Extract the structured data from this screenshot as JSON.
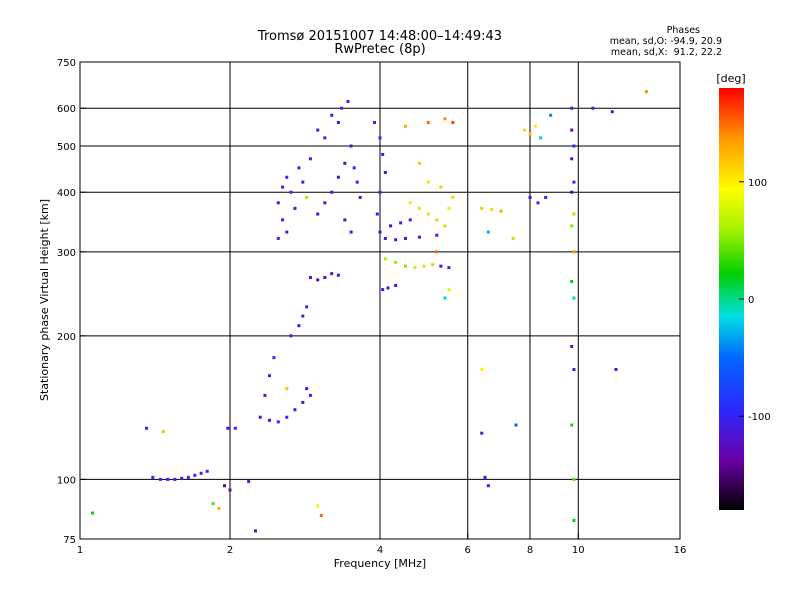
{
  "chart_data": {
    "type": "scatter",
    "title": "Tromsø 20151007 14:48:00–14:49:43",
    "subtitle": "RwPretec (8p)",
    "xlabel": "Frequency [MHz]",
    "ylabel": "Stationary phase Virtual Height [km]",
    "x_scale": "log",
    "y_scale": "log",
    "xlim": [
      1,
      16
    ],
    "ylim": [
      75,
      750
    ],
    "x_ticks": [
      1,
      2,
      4,
      6,
      8,
      10,
      16
    ],
    "y_ticks": [
      75,
      100,
      200,
      300,
      400,
      500,
      600,
      750
    ],
    "grid": true,
    "stats": {
      "heading": "Phases",
      "line_o": "mean, sd,O: -94.9, 20.9",
      "line_x": "mean, sd,X:  91.2, 22.2"
    },
    "colorbar": {
      "label": "[deg]",
      "range": [
        -180,
        180
      ],
      "ticks": [
        -100,
        0,
        100
      ],
      "colormap": "rainbow"
    },
    "series": [
      {
        "points": [
          {
            "x": 1.4,
            "y": 101,
            "c": -100
          },
          {
            "x": 1.45,
            "y": 100,
            "c": -105
          },
          {
            "x": 1.5,
            "y": 100,
            "c": -110
          },
          {
            "x": 1.55,
            "y": 100,
            "c": -112
          },
          {
            "x": 1.6,
            "y": 100.5,
            "c": -108
          },
          {
            "x": 1.65,
            "y": 101,
            "c": -105
          },
          {
            "x": 1.7,
            "y": 102,
            "c": -102
          },
          {
            "x": 1.75,
            "y": 103,
            "c": -100
          },
          {
            "x": 1.8,
            "y": 104,
            "c": -98
          },
          {
            "x": 1.36,
            "y": 128,
            "c": -95
          },
          {
            "x": 1.47,
            "y": 126,
            "c": 60
          },
          {
            "x": 1.98,
            "y": 128,
            "c": -105
          },
          {
            "x": 2.05,
            "y": 128,
            "c": -95
          },
          {
            "x": 1.95,
            "y": 97,
            "c": -140
          },
          {
            "x": 2.0,
            "y": 95,
            "c": -120
          },
          {
            "x": 2.18,
            "y": 99,
            "c": -90
          },
          {
            "x": 1.85,
            "y": 89,
            "c": 40
          },
          {
            "x": 2.3,
            "y": 135,
            "c": -110
          },
          {
            "x": 2.4,
            "y": 133,
            "c": -105
          },
          {
            "x": 2.5,
            "y": 132,
            "c": -100
          },
          {
            "x": 2.6,
            "y": 135,
            "c": -95
          },
          {
            "x": 2.7,
            "y": 140,
            "c": -100
          },
          {
            "x": 2.8,
            "y": 145,
            "c": -105
          },
          {
            "x": 2.35,
            "y": 150,
            "c": -110
          },
          {
            "x": 2.4,
            "y": 165,
            "c": -100
          },
          {
            "x": 2.45,
            "y": 180,
            "c": -95
          },
          {
            "x": 2.6,
            "y": 155,
            "c": 120
          },
          {
            "x": 2.85,
            "y": 155,
            "c": -110
          },
          {
            "x": 2.9,
            "y": 150,
            "c": -100
          },
          {
            "x": 2.65,
            "y": 200,
            "c": -105
          },
          {
            "x": 2.75,
            "y": 210,
            "c": -110
          },
          {
            "x": 2.8,
            "y": 220,
            "c": -100
          },
          {
            "x": 2.85,
            "y": 230,
            "c": -95
          },
          {
            "x": 2.5,
            "y": 380,
            "c": -110
          },
          {
            "x": 2.55,
            "y": 410,
            "c": -105
          },
          {
            "x": 2.6,
            "y": 430,
            "c": -100
          },
          {
            "x": 2.65,
            "y": 400,
            "c": -95
          },
          {
            "x": 2.7,
            "y": 370,
            "c": -110
          },
          {
            "x": 2.75,
            "y": 450,
            "c": -105
          },
          {
            "x": 2.8,
            "y": 420,
            "c": -100
          },
          {
            "x": 2.85,
            "y": 390,
            "c": 60
          },
          {
            "x": 2.9,
            "y": 470,
            "c": -100
          },
          {
            "x": 2.55,
            "y": 350,
            "c": -105
          },
          {
            "x": 2.6,
            "y": 330,
            "c": -100
          },
          {
            "x": 2.5,
            "y": 320,
            "c": -95
          },
          {
            "x": 2.9,
            "y": 265,
            "c": -125
          },
          {
            "x": 3.0,
            "y": 262,
            "c": -130
          },
          {
            "x": 3.1,
            "y": 265,
            "c": -125
          },
          {
            "x": 3.2,
            "y": 270,
            "c": -120
          },
          {
            "x": 3.3,
            "y": 268,
            "c": -115
          },
          {
            "x": 3.0,
            "y": 360,
            "c": -120
          },
          {
            "x": 3.1,
            "y": 380,
            "c": -110
          },
          {
            "x": 3.2,
            "y": 400,
            "c": -115
          },
          {
            "x": 3.3,
            "y": 430,
            "c": -120
          },
          {
            "x": 3.4,
            "y": 460,
            "c": -125
          },
          {
            "x": 3.5,
            "y": 500,
            "c": -110
          },
          {
            "x": 3.55,
            "y": 450,
            "c": -100
          },
          {
            "x": 3.6,
            "y": 420,
            "c": -105
          },
          {
            "x": 3.65,
            "y": 390,
            "c": -110
          },
          {
            "x": 3.3,
            "y": 560,
            "c": -110
          },
          {
            "x": 3.35,
            "y": 600,
            "c": -100
          },
          {
            "x": 3.45,
            "y": 620,
            "c": -105
          },
          {
            "x": 3.1,
            "y": 520,
            "c": -95
          },
          {
            "x": 3.2,
            "y": 580,
            "c": -100
          },
          {
            "x": 3.0,
            "y": 540,
            "c": -110
          },
          {
            "x": 3.4,
            "y": 350,
            "c": -115
          },
          {
            "x": 3.5,
            "y": 330,
            "c": -100
          },
          {
            "x": 3.9,
            "y": 560,
            "c": -100
          },
          {
            "x": 4.0,
            "y": 520,
            "c": -95
          },
          {
            "x": 4.05,
            "y": 480,
            "c": -105
          },
          {
            "x": 4.1,
            "y": 440,
            "c": -110
          },
          {
            "x": 4.0,
            "y": 400,
            "c": -100
          },
          {
            "x": 3.95,
            "y": 360,
            "c": -105
          },
          {
            "x": 4.0,
            "y": 330,
            "c": -110
          },
          {
            "x": 4.1,
            "y": 320,
            "c": -115
          },
          {
            "x": 4.3,
            "y": 318,
            "c": -110
          },
          {
            "x": 4.5,
            "y": 320,
            "c": -105
          },
          {
            "x": 4.8,
            "y": 322,
            "c": -100
          },
          {
            "x": 5.2,
            "y": 325,
            "c": -100
          },
          {
            "x": 4.2,
            "y": 340,
            "c": -120
          },
          {
            "x": 4.4,
            "y": 345,
            "c": -110
          },
          {
            "x": 4.6,
            "y": 350,
            "c": -105
          },
          {
            "x": 4.05,
            "y": 250,
            "c": -110
          },
          {
            "x": 4.15,
            "y": 252,
            "c": -120
          },
          {
            "x": 4.3,
            "y": 255,
            "c": -115
          },
          {
            "x": 4.1,
            "y": 290,
            "c": 60
          },
          {
            "x": 4.3,
            "y": 285,
            "c": 55
          },
          {
            "x": 4.5,
            "y": 280,
            "c": 50
          },
          {
            "x": 4.7,
            "y": 278,
            "c": 70
          },
          {
            "x": 4.9,
            "y": 280,
            "c": 65
          },
          {
            "x": 5.1,
            "y": 282,
            "c": 60
          },
          {
            "x": 5.3,
            "y": 280,
            "c": -110
          },
          {
            "x": 5.5,
            "y": 278,
            "c": -105
          },
          {
            "x": 4.6,
            "y": 380,
            "c": 80
          },
          {
            "x": 4.8,
            "y": 370,
            "c": 75
          },
          {
            "x": 5.0,
            "y": 360,
            "c": 70
          },
          {
            "x": 5.2,
            "y": 350,
            "c": 65
          },
          {
            "x": 5.4,
            "y": 340,
            "c": 60
          },
          {
            "x": 5.5,
            "y": 370,
            "c": 80
          },
          {
            "x": 5.6,
            "y": 390,
            "c": 70
          },
          {
            "x": 5.3,
            "y": 410,
            "c": 60
          },
          {
            "x": 5.0,
            "y": 420,
            "c": 75
          },
          {
            "x": 5.2,
            "y": 300,
            "c": 150
          },
          {
            "x": 5.5,
            "y": 250,
            "c": 80
          },
          {
            "x": 5.4,
            "y": 240,
            "c": -20
          },
          {
            "x": 4.5,
            "y": 550,
            "c": 130
          },
          {
            "x": 5.0,
            "y": 560,
            "c": 150
          },
          {
            "x": 5.4,
            "y": 570,
            "c": 140
          },
          {
            "x": 5.6,
            "y": 560,
            "c": 160
          },
          {
            "x": 4.8,
            "y": 460,
            "c": 120
          },
          {
            "x": 6.4,
            "y": 370,
            "c": 120
          },
          {
            "x": 6.7,
            "y": 368,
            "c": 110
          },
          {
            "x": 7.0,
            "y": 365,
            "c": 130
          },
          {
            "x": 6.6,
            "y": 330,
            "c": -30
          },
          {
            "x": 7.4,
            "y": 320,
            "c": 60
          },
          {
            "x": 7.8,
            "y": 540,
            "c": 110
          },
          {
            "x": 8.0,
            "y": 530,
            "c": 120
          },
          {
            "x": 8.2,
            "y": 550,
            "c": 100
          },
          {
            "x": 8.4,
            "y": 520,
            "c": -20
          },
          {
            "x": 8.8,
            "y": 580,
            "c": -40
          },
          {
            "x": 8.0,
            "y": 390,
            "c": -110
          },
          {
            "x": 8.6,
            "y": 390,
            "c": -100
          },
          {
            "x": 8.3,
            "y": 380,
            "c": -90
          },
          {
            "x": 6.4,
            "y": 170,
            "c": 100
          },
          {
            "x": 6.4,
            "y": 125,
            "c": -110
          },
          {
            "x": 6.5,
            "y": 101,
            "c": -120
          },
          {
            "x": 6.6,
            "y": 97,
            "c": -105
          },
          {
            "x": 7.5,
            "y": 130,
            "c": -60
          },
          {
            "x": 9.7,
            "y": 600,
            "c": -110
          },
          {
            "x": 9.7,
            "y": 540,
            "c": -130
          },
          {
            "x": 9.8,
            "y": 500,
            "c": -100
          },
          {
            "x": 9.7,
            "y": 470,
            "c": -120
          },
          {
            "x": 9.8,
            "y": 420,
            "c": -100
          },
          {
            "x": 9.7,
            "y": 400,
            "c": -140
          },
          {
            "x": 9.8,
            "y": 360,
            "c": 60
          },
          {
            "x": 9.7,
            "y": 340,
            "c": 50
          },
          {
            "x": 9.8,
            "y": 300,
            "c": 140
          },
          {
            "x": 9.7,
            "y": 260,
            "c": 20
          },
          {
            "x": 9.8,
            "y": 240,
            "c": 0
          },
          {
            "x": 9.7,
            "y": 190,
            "c": -130
          },
          {
            "x": 9.8,
            "y": 170,
            "c": -110
          },
          {
            "x": 9.7,
            "y": 130,
            "c": 30
          },
          {
            "x": 9.8,
            "y": 100,
            "c": 40
          },
          {
            "x": 9.8,
            "y": 82,
            "c": 20
          },
          {
            "x": 11.7,
            "y": 590,
            "c": -110
          },
          {
            "x": 11.9,
            "y": 170,
            "c": -120
          },
          {
            "x": 13.7,
            "y": 650,
            "c": 140
          },
          {
            "x": 10.7,
            "y": 600,
            "c": -100
          },
          {
            "x": 1.06,
            "y": 85,
            "c": 20
          },
          {
            "x": 1.9,
            "y": 87,
            "c": 130
          },
          {
            "x": 2.25,
            "y": 78,
            "c": -120
          },
          {
            "x": 3.0,
            "y": 88,
            "c": 100
          },
          {
            "x": 3.05,
            "y": 84,
            "c": 150
          }
        ]
      }
    ]
  }
}
